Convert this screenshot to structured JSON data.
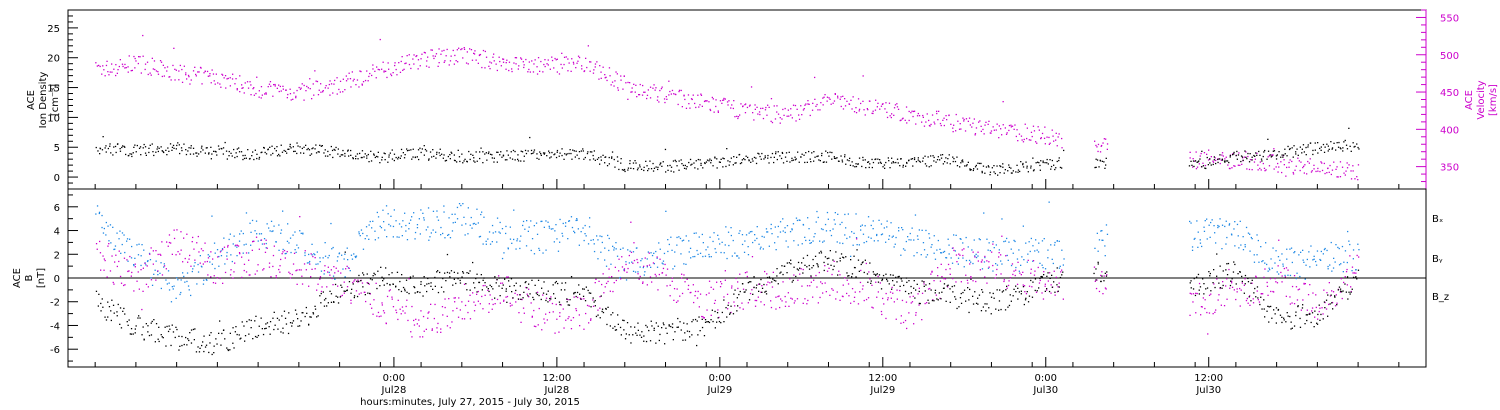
{
  "footer_label": "hours:minutes, July 27, 2015 - July 30, 2015",
  "chart_data": [
    {
      "type": "scatter",
      "panel": "top",
      "ylabel_left": [
        "ACE",
        "Ion Density",
        "[cm⁻³]"
      ],
      "ylabel_right": [
        "ACE",
        "Velocity",
        "[km/s]"
      ],
      "ylim_left": [
        -2,
        28
      ],
      "ylim_right": [
        320,
        560
      ],
      "yticks_left": [
        "0",
        "5",
        "10",
        "15",
        "20",
        "25"
      ],
      "yticks_right": [
        "350",
        "400",
        "450",
        "500",
        "550"
      ],
      "colors": {
        "density": "#000000",
        "velocity": "#cc00cc"
      },
      "series": [
        {
          "key": "density",
          "axis": "left",
          "x_hours": [
            0,
            3,
            6,
            9,
            12,
            15,
            18,
            21,
            24,
            27,
            30,
            33,
            36,
            39,
            42,
            45,
            48,
            51,
            54,
            57,
            60,
            63,
            66,
            69,
            72,
            75,
            78,
            81,
            84,
            87,
            90,
            93
          ],
          "values": [
            5,
            4.5,
            5,
            4,
            4,
            5,
            4,
            3.5,
            4,
            3.5,
            3.5,
            4,
            4,
            2,
            1.8,
            2.5,
            3,
            3.5,
            3.5,
            2.2,
            2.5,
            3,
            1.2,
            2,
            2.5,
            2.5,
            3,
            2.2,
            3.5,
            4,
            5,
            5.5
          ],
          "gaps": [
            [
              71.3,
              73.5
            ],
            [
              74.5,
              80.5
            ]
          ]
        },
        {
          "key": "velocity",
          "axis": "right",
          "x_hours": [
            0,
            2,
            3,
            5,
            6,
            9,
            12,
            15,
            18,
            21,
            24,
            27,
            30,
            33,
            36,
            39,
            42,
            45,
            48,
            51,
            54,
            57,
            60,
            63,
            66,
            69,
            72,
            75,
            78,
            81,
            84,
            87,
            90,
            93
          ],
          "values": [
            480,
            485,
            490,
            480,
            475,
            470,
            455,
            450,
            460,
            480,
            495,
            500,
            490,
            485,
            490,
            460,
            445,
            435,
            425,
            420,
            440,
            430,
            420,
            410,
            400,
            395,
            385,
            375,
            365,
            360,
            360,
            355,
            350,
            345
          ],
          "gaps": [
            [
              71.3,
              73.5
            ],
            [
              74.5,
              80.5
            ]
          ]
        }
      ]
    },
    {
      "type": "scatter",
      "panel": "bottom",
      "ylabel_left": [
        "ACE",
        "B",
        "[nT]"
      ],
      "ylim": [
        -7.5,
        7.5
      ],
      "yticks": [
        "-6",
        "-4",
        "-2",
        "0",
        "2",
        "4",
        "6"
      ],
      "legend": [
        {
          "label": "Bₓ",
          "color": "#000000"
        },
        {
          "label": "Bᵧ",
          "color": "#1e88e5"
        },
        {
          "label": "B_z",
          "color": "#cc00cc"
        }
      ],
      "series": [
        {
          "name": "Bₓ",
          "x_hours": [
            0,
            3,
            6,
            9,
            12,
            15,
            18,
            21,
            24,
            27,
            30,
            33,
            36,
            39,
            42,
            45,
            48,
            51,
            54,
            57,
            60,
            63,
            66,
            69,
            72,
            75,
            78,
            81,
            84,
            87,
            90,
            93
          ],
          "values": [
            -2,
            -4,
            -5,
            -5.5,
            -4,
            -3.5,
            -1,
            0,
            -0.5,
            0,
            -1,
            -1,
            -1.5,
            -4.5,
            -4.5,
            -4,
            -1,
            0.5,
            1.5,
            0.5,
            -1,
            -1.5,
            -2,
            -1,
            0.5,
            0.5,
            -0.5,
            -0.5,
            0.5,
            -3.5,
            -3,
            0
          ],
          "gaps": [
            [
              71.3,
              73.5
            ],
            [
              74.5,
              80.5
            ]
          ]
        },
        {
          "name": "Bᵧ",
          "x_hours": [
            0,
            3,
            6,
            9,
            12,
            15,
            18,
            21,
            24,
            27,
            30,
            33,
            36,
            39,
            42,
            45,
            48,
            51,
            54,
            57,
            60,
            63,
            66,
            69,
            72,
            75,
            78,
            81,
            84,
            87,
            90,
            93
          ],
          "values": [
            5,
            2,
            -1,
            2,
            4,
            3,
            1,
            5,
            4.5,
            5,
            3.5,
            3.5,
            4,
            1,
            2,
            3,
            3,
            4,
            4.5,
            4,
            3,
            2.5,
            2,
            2,
            2,
            3.5,
            3.5,
            3.5,
            4,
            1,
            1.5,
            2
          ],
          "gaps": [
            [
              71.3,
              73.5
            ],
            [
              74.5,
              80.5
            ]
          ]
        },
        {
          "name": "B_z",
          "x_hours": [
            0,
            3,
            6,
            9,
            12,
            15,
            18,
            21,
            24,
            27,
            30,
            33,
            36,
            39,
            42,
            45,
            48,
            51,
            54,
            57,
            60,
            63,
            66,
            69,
            72,
            75,
            78,
            81,
            84,
            87,
            90,
            93
          ],
          "values": [
            2,
            0,
            3,
            1,
            2,
            1,
            0,
            -2,
            -4,
            -2,
            -1,
            -3,
            -3,
            2,
            0,
            -2,
            -1,
            -1,
            0,
            -1,
            -3,
            1,
            1,
            0,
            -1,
            0,
            -2,
            -2,
            -1,
            0,
            -2,
            1
          ],
          "gaps": [
            [
              71.3,
              73.5
            ],
            [
              74.5,
              80.5
            ]
          ]
        }
      ]
    }
  ],
  "x_axis": {
    "x_range_hours": [
      -2,
      98
    ],
    "ticks": [
      {
        "hour": 22,
        "time": "0:00",
        "date": "Jul28"
      },
      {
        "hour": 34,
        "time": "12:00",
        "date": "Jul28"
      },
      {
        "hour": 46,
        "time": "0:00",
        "date": "Jul29"
      },
      {
        "hour": 58,
        "time": "12:00",
        "date": "Jul29"
      },
      {
        "hour": 70,
        "time": "0:00",
        "date": "Jul30"
      },
      {
        "hour": 82,
        "time": "12:00",
        "date": "Jul30"
      }
    ]
  }
}
